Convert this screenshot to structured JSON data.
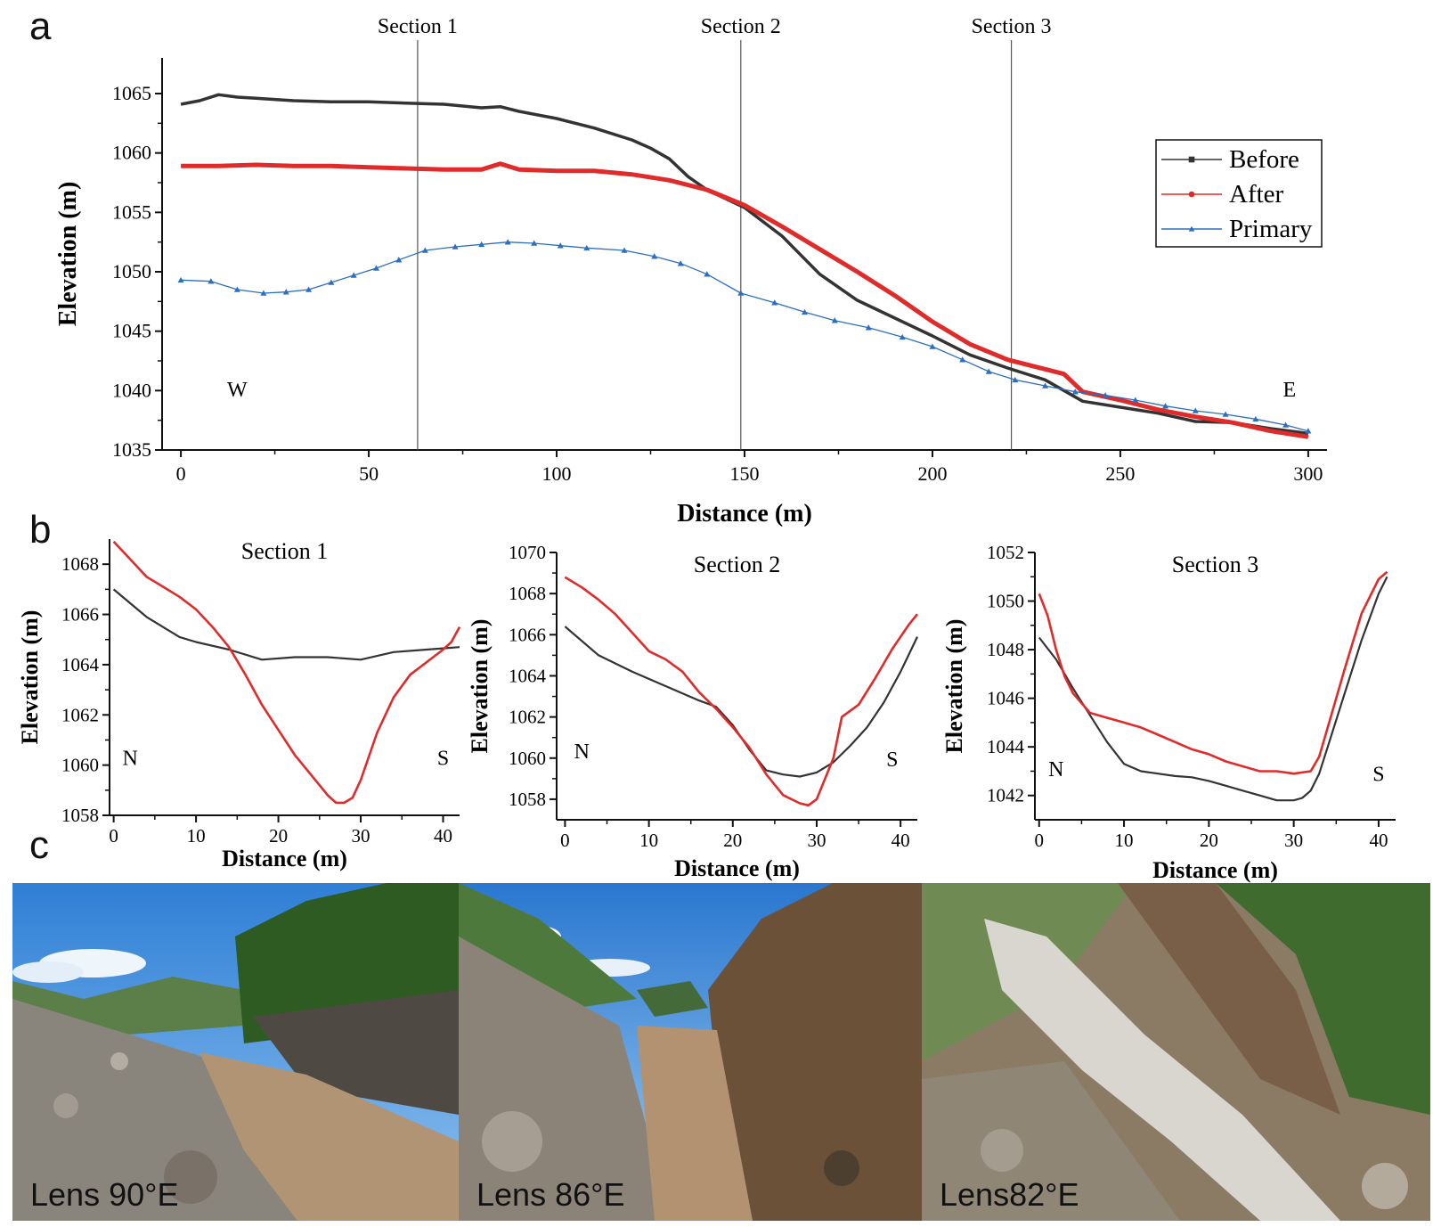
{
  "panel_labels": {
    "a": "a",
    "b": "b",
    "c": "c"
  },
  "colors": {
    "before": "#333333",
    "after": "#e02b2b",
    "primary": "#2c6fc0"
  },
  "chart_data": [
    {
      "id": "panel-a",
      "type": "line",
      "title": "",
      "xlabel": "Distance (m)",
      "ylabel": "Elevation (m)",
      "xlim": [
        -5,
        305
      ],
      "ylim": [
        1035,
        1068
      ],
      "xticks": [
        0,
        50,
        100,
        150,
        200,
        250,
        300
      ],
      "yticks": [
        1035,
        1040,
        1045,
        1050,
        1055,
        1060,
        1065
      ],
      "legend": {
        "position": "top-right",
        "entries": [
          "Before",
          "After",
          "Primary"
        ]
      },
      "section_lines": [
        {
          "x": 63,
          "label": "Section 1"
        },
        {
          "x": 149,
          "label": "Section 2"
        },
        {
          "x": 221,
          "label": "Section 3"
        }
      ],
      "annotations": [
        {
          "text": "W",
          "x": 15,
          "y": 1039.5
        },
        {
          "text": "E",
          "x": 295,
          "y": 1039.5
        }
      ],
      "series": [
        {
          "name": "Before",
          "marker": "square",
          "x": [
            0,
            5,
            10,
            15,
            20,
            30,
            40,
            50,
            60,
            70,
            80,
            85,
            90,
            100,
            110,
            120,
            125,
            130,
            135,
            140,
            150,
            160,
            170,
            180,
            190,
            200,
            210,
            220,
            230,
            240,
            250,
            260,
            270,
            280,
            290,
            300
          ],
          "y": [
            1064.1,
            1064.4,
            1064.9,
            1064.7,
            1064.6,
            1064.4,
            1064.3,
            1064.3,
            1064.2,
            1064.1,
            1063.8,
            1063.9,
            1063.5,
            1062.9,
            1062.1,
            1061.1,
            1060.4,
            1059.5,
            1058.0,
            1056.9,
            1055.4,
            1053.0,
            1049.8,
            1047.6,
            1046.1,
            1044.6,
            1043.0,
            1041.9,
            1040.9,
            1039.1,
            1038.6,
            1038.1,
            1037.4,
            1037.3,
            1036.8,
            1036.4
          ]
        },
        {
          "name": "After",
          "marker": "circle",
          "x": [
            0,
            10,
            20,
            30,
            40,
            50,
            60,
            70,
            80,
            85,
            90,
            100,
            110,
            120,
            130,
            140,
            150,
            160,
            170,
            180,
            190,
            200,
            210,
            220,
            230,
            235,
            240,
            250,
            260,
            270,
            280,
            290,
            300
          ],
          "y": [
            1058.9,
            1058.9,
            1059.0,
            1058.9,
            1058.9,
            1058.8,
            1058.7,
            1058.6,
            1058.6,
            1059.1,
            1058.6,
            1058.5,
            1058.5,
            1058.2,
            1057.7,
            1056.9,
            1055.6,
            1053.8,
            1051.9,
            1050.0,
            1048.0,
            1045.8,
            1043.9,
            1042.6,
            1041.8,
            1041.4,
            1039.9,
            1039.2,
            1038.4,
            1037.8,
            1037.3,
            1036.6,
            1036.1
          ]
        },
        {
          "name": "Primary",
          "marker": "triangle",
          "x": [
            0,
            8,
            15,
            22,
            28,
            34,
            40,
            46,
            52,
            58,
            65,
            73,
            80,
            87,
            94,
            101,
            108,
            118,
            126,
            133,
            140,
            149,
            158,
            166,
            174,
            183,
            192,
            200,
            208,
            215,
            222,
            230,
            238,
            246,
            254,
            262,
            270,
            278,
            286,
            294,
            300
          ],
          "y": [
            1049.3,
            1049.2,
            1048.5,
            1048.2,
            1048.3,
            1048.5,
            1049.1,
            1049.7,
            1050.3,
            1051.0,
            1051.8,
            1052.1,
            1052.3,
            1052.5,
            1052.4,
            1052.2,
            1052.0,
            1051.8,
            1051.3,
            1050.7,
            1049.8,
            1048.2,
            1047.4,
            1046.6,
            1045.9,
            1045.3,
            1044.5,
            1043.7,
            1042.6,
            1041.6,
            1040.9,
            1040.4,
            1039.9,
            1039.6,
            1039.2,
            1038.7,
            1038.3,
            1038.0,
            1037.6,
            1037.1,
            1036.6
          ]
        }
      ]
    },
    {
      "id": "section-1",
      "type": "line",
      "title": "Section 1",
      "xlabel": "Distance (m)",
      "ylabel": "Elevation (m)",
      "xlim": [
        -0.5,
        42
      ],
      "ylim": [
        1058,
        1069
      ],
      "xticks": [
        0,
        10,
        20,
        30,
        40
      ],
      "yticks": [
        1058,
        1060,
        1062,
        1064,
        1066,
        1068
      ],
      "annotations": [
        {
          "text": "N",
          "x": 2,
          "y": 1060
        },
        {
          "text": "S",
          "x": 40,
          "y": 1060
        }
      ],
      "series": [
        {
          "name": "Before",
          "x": [
            0,
            4,
            8,
            10,
            14,
            18,
            22,
            26,
            30,
            34,
            38,
            42
          ],
          "y": [
            1067.0,
            1065.9,
            1065.1,
            1064.9,
            1064.6,
            1064.2,
            1064.3,
            1064.3,
            1064.2,
            1064.5,
            1064.6,
            1064.7
          ]
        },
        {
          "name": "After",
          "x": [
            0,
            2,
            4,
            6,
            8,
            10,
            12,
            14,
            16,
            18,
            20,
            22,
            24,
            26,
            27,
            28,
            29,
            30,
            32,
            34,
            36,
            38,
            40,
            41,
            42
          ],
          "y": [
            1068.9,
            1068.2,
            1067.5,
            1067.1,
            1066.7,
            1066.2,
            1065.5,
            1064.7,
            1063.6,
            1062.4,
            1061.4,
            1060.4,
            1059.6,
            1058.8,
            1058.5,
            1058.5,
            1058.7,
            1059.4,
            1061.3,
            1062.7,
            1063.6,
            1064.1,
            1064.6,
            1064.9,
            1065.5
          ]
        }
      ]
    },
    {
      "id": "section-2",
      "type": "line",
      "title": "Section 2",
      "xlabel": "Distance (m)",
      "ylabel": "Elevation (m)",
      "xlim": [
        -1,
        42
      ],
      "ylim": [
        1057,
        1070
      ],
      "xticks": [
        0,
        10,
        20,
        30,
        40
      ],
      "yticks": [
        1058,
        1060,
        1062,
        1064,
        1066,
        1068,
        1070
      ],
      "annotations": [
        {
          "text": "N",
          "x": 2,
          "y": 1060
        },
        {
          "text": "S",
          "x": 39,
          "y": 1059.6
        }
      ],
      "series": [
        {
          "name": "Before",
          "x": [
            0,
            4,
            8,
            12,
            16,
            18,
            20,
            22,
            24,
            26,
            28,
            30,
            32,
            34,
            36,
            38,
            40,
            42
          ],
          "y": [
            1066.4,
            1065.0,
            1064.2,
            1063.5,
            1062.8,
            1062.5,
            1061.6,
            1060.4,
            1059.4,
            1059.2,
            1059.1,
            1059.3,
            1059.8,
            1060.6,
            1061.5,
            1062.7,
            1064.2,
            1065.9
          ]
        },
        {
          "name": "After",
          "x": [
            0,
            2,
            4,
            6,
            8,
            10,
            12,
            14,
            16,
            18,
            20,
            22,
            24,
            26,
            28,
            29,
            30,
            32,
            33,
            35,
            37,
            39,
            41,
            42
          ],
          "y": [
            1068.8,
            1068.3,
            1067.7,
            1067.0,
            1066.1,
            1065.2,
            1064.8,
            1064.2,
            1063.2,
            1062.4,
            1061.5,
            1060.5,
            1059.2,
            1058.2,
            1057.8,
            1057.7,
            1058.0,
            1060.0,
            1062.0,
            1062.6,
            1063.9,
            1065.3,
            1066.5,
            1067.0
          ]
        }
      ]
    },
    {
      "id": "section-3",
      "type": "line",
      "title": "Section 3",
      "xlabel": "Distance (m)",
      "ylabel": "Elevation (m)",
      "xlim": [
        -0.5,
        42
      ],
      "ylim": [
        1041,
        1052
      ],
      "xticks": [
        0,
        10,
        20,
        30,
        40
      ],
      "yticks": [
        1042,
        1044,
        1046,
        1048,
        1050,
        1052
      ],
      "annotations": [
        {
          "text": "N",
          "x": 2,
          "y": 1042.8
        },
        {
          "text": "S",
          "x": 40,
          "y": 1042.6
        }
      ],
      "series": [
        {
          "name": "Before",
          "x": [
            0,
            2,
            4,
            6,
            8,
            10,
            12,
            14,
            16,
            18,
            20,
            22,
            24,
            26,
            28,
            30,
            31,
            32,
            33,
            34,
            36,
            38,
            40,
            41
          ],
          "y": [
            1048.5,
            1047.6,
            1046.4,
            1045.3,
            1044.2,
            1043.3,
            1043.0,
            1042.9,
            1042.8,
            1042.75,
            1042.6,
            1042.4,
            1042.2,
            1042.0,
            1041.8,
            1041.8,
            1041.9,
            1042.2,
            1042.9,
            1044.0,
            1046.2,
            1048.4,
            1050.3,
            1051.0
          ]
        },
        {
          "name": "After",
          "x": [
            0,
            1,
            2,
            3,
            4,
            6,
            8,
            10,
            12,
            14,
            16,
            18,
            20,
            22,
            24,
            26,
            28,
            30,
            32,
            33,
            34,
            36,
            38,
            40,
            41
          ],
          "y": [
            1050.3,
            1049.4,
            1048.0,
            1046.9,
            1046.2,
            1045.4,
            1045.2,
            1045.0,
            1044.8,
            1044.5,
            1044.2,
            1043.9,
            1043.7,
            1043.4,
            1043.2,
            1043.0,
            1043.0,
            1042.9,
            1043.0,
            1043.6,
            1044.8,
            1047.2,
            1049.5,
            1050.9,
            1051.2
          ]
        }
      ]
    }
  ],
  "photos": [
    {
      "caption": "Lens 90°E"
    },
    {
      "caption": "Lens 86°E"
    },
    {
      "caption": "Lens82°E"
    }
  ]
}
